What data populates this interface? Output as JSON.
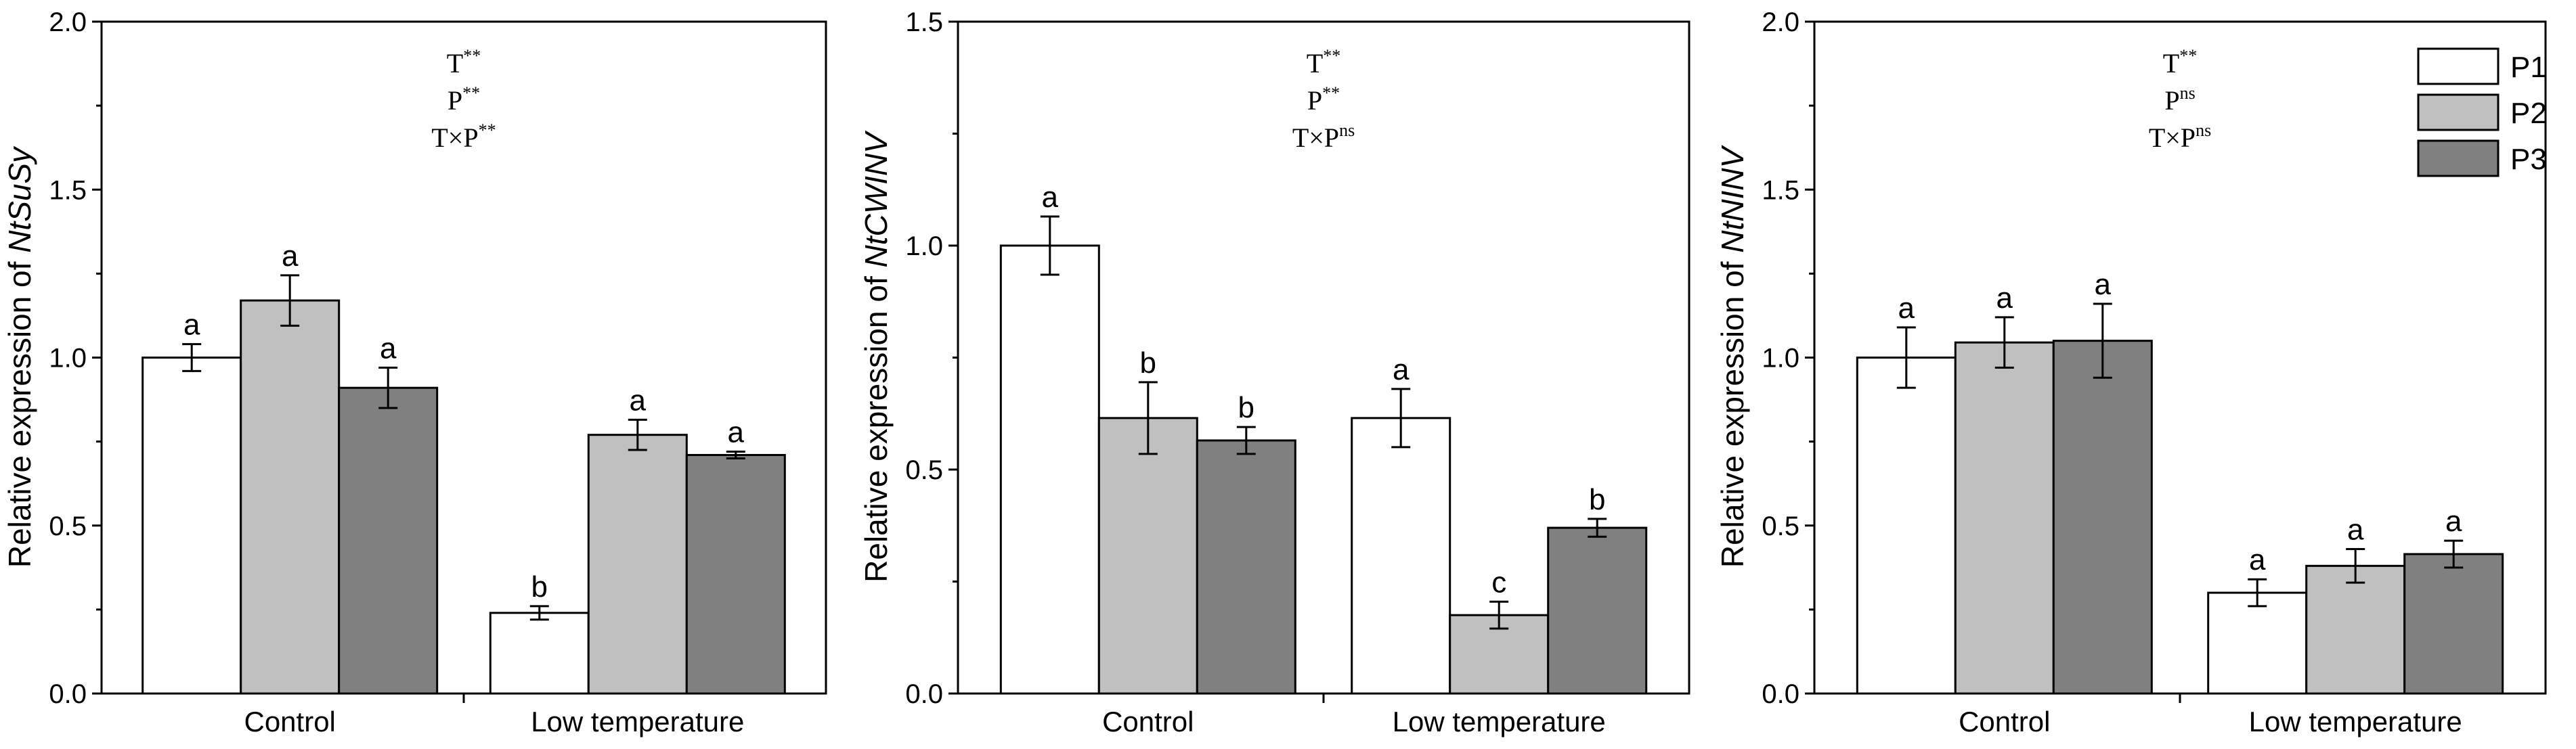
{
  "legend": [
    {
      "name": "P1",
      "color": "#ffffff"
    },
    {
      "name": "P2",
      "color": "#c0c0c0"
    },
    {
      "name": "P3",
      "color": "#808080"
    }
  ],
  "chart_data": [
    {
      "type": "bar",
      "ylabel_prefix": "Relative expression of ",
      "ylabel_gene": "NtSuSy",
      "categories": [
        "Control",
        "Low temperature"
      ],
      "ylim": [
        0,
        2.0
      ],
      "yticks": [
        "0.0",
        "0.5",
        "1.0",
        "1.5",
        "2.0"
      ],
      "stats": [
        {
          "base": "T",
          "sup": "**"
        },
        {
          "base": "P",
          "sup": "**"
        },
        {
          "base": "T×P",
          "sup": "**"
        }
      ],
      "series": [
        {
          "name": "P1",
          "values": [
            1.0,
            0.24
          ],
          "errors": [
            0.04,
            0.02
          ],
          "letters": [
            "a",
            "b"
          ]
        },
        {
          "name": "P2",
          "values": [
            1.17,
            0.77
          ],
          "errors": [
            0.075,
            0.045
          ],
          "letters": [
            "a",
            "a"
          ]
        },
        {
          "name": "P3",
          "values": [
            0.91,
            0.71
          ],
          "errors": [
            0.06,
            0.01
          ],
          "letters": [
            "a",
            "a"
          ]
        }
      ]
    },
    {
      "type": "bar",
      "ylabel_prefix": "Relative expression of ",
      "ylabel_gene": "NtCWINV",
      "categories": [
        "Control",
        "Low temperature"
      ],
      "ylim": [
        0,
        1.5
      ],
      "yticks": [
        "0.0",
        "0.5",
        "1.0",
        "1.5"
      ],
      "stats": [
        {
          "base": "T",
          "sup": "**"
        },
        {
          "base": "P",
          "sup": "**"
        },
        {
          "base": "T×P",
          "sup": "ns"
        }
      ],
      "series": [
        {
          "name": "P1",
          "values": [
            1.0,
            0.615
          ],
          "errors": [
            0.065,
            0.065
          ],
          "letters": [
            "a",
            "a"
          ]
        },
        {
          "name": "P2",
          "values": [
            0.615,
            0.175
          ],
          "errors": [
            0.08,
            0.03
          ],
          "letters": [
            "b",
            "c"
          ]
        },
        {
          "name": "P3",
          "values": [
            0.565,
            0.37
          ],
          "errors": [
            0.03,
            0.02
          ],
          "letters": [
            "b",
            "b"
          ]
        }
      ]
    },
    {
      "type": "bar",
      "ylabel_prefix": "Relative expression of ",
      "ylabel_gene": "NtNINV",
      "categories": [
        "Control",
        "Low temperature"
      ],
      "ylim": [
        0,
        2.0
      ],
      "yticks": [
        "0.0",
        "0.5",
        "1.0",
        "1.5",
        "2.0"
      ],
      "stats": [
        {
          "base": "T",
          "sup": "**"
        },
        {
          "base": "P",
          "sup": "ns"
        },
        {
          "base": "T×P",
          "sup": "ns"
        }
      ],
      "series": [
        {
          "name": "P1",
          "values": [
            1.0,
            0.3
          ],
          "errors": [
            0.09,
            0.04
          ],
          "letters": [
            "a",
            "a"
          ]
        },
        {
          "name": "P2",
          "values": [
            1.045,
            0.38
          ],
          "errors": [
            0.075,
            0.05
          ],
          "letters": [
            "a",
            "a"
          ]
        },
        {
          "name": "P3",
          "values": [
            1.05,
            0.415
          ],
          "errors": [
            0.11,
            0.04
          ],
          "letters": [
            "a",
            "a"
          ]
        }
      ]
    }
  ]
}
